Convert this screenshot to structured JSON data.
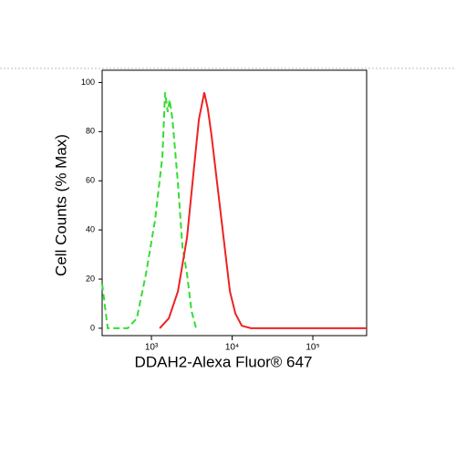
{
  "chart_data": {
    "type": "line",
    "xlabel": "DDAH2-Alexa Fluor® 647",
    "ylabel": "Cell Counts (% Max)",
    "xscale": "log",
    "xlim": [
      245,
      464000
    ],
    "ylim": [
      -3,
      105
    ],
    "xticks": [
      {
        "value": 1000,
        "label": "10³"
      },
      {
        "value": 10000,
        "label": "10⁴"
      },
      {
        "value": 100000,
        "label": "10⁵"
      }
    ],
    "yticks": [
      0,
      20,
      40,
      60,
      80,
      100
    ],
    "series": [
      {
        "color": "#33dd33",
        "line_style": "dashed",
        "x": [
          245,
          287,
          508,
          659,
          855,
          1109,
          1367,
          1477,
          1596,
          1682,
          1820,
          2127,
          2423,
          2759,
          3142,
          3577
        ],
        "values": [
          18,
          0,
          0,
          4,
          22,
          44,
          70,
          96,
          88,
          93,
          85,
          59,
          33,
          22,
          7,
          0
        ]
      },
      {
        "color": "#ee2222",
        "line_style": "solid",
        "x": [
          1264,
          1640,
          2127,
          2759,
          3313,
          3873,
          4519,
          5019,
          5572,
          6516,
          7818,
          9376,
          10965,
          13152,
          17062,
          464000
        ],
        "values": [
          0,
          4,
          15,
          37,
          63,
          85,
          96,
          89,
          78,
          59,
          37,
          15,
          6,
          1,
          0,
          0
        ]
      }
    ]
  }
}
